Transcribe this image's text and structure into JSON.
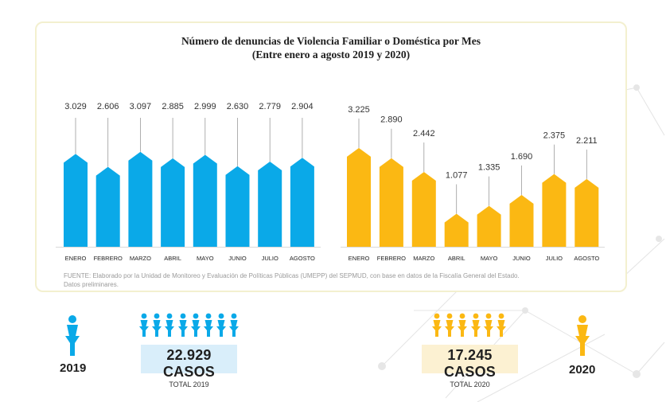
{
  "title": {
    "line1": "Número de denuncias de Violencia Familiar o Doméstica por Mes",
    "line2": "(Entre enero a agosto 2019 y 2020)"
  },
  "colors": {
    "series_2019": "#0aa9e8",
    "series_2020": "#fbb813",
    "leader": "#9b9b9b",
    "box_2019": "#d9eefa",
    "box_2020": "#fcf1d2"
  },
  "chart_data": [
    {
      "type": "bar",
      "categories": [
        "ENERO",
        "FEBRERO",
        "MARZO",
        "ABRIL",
        "MAYO",
        "JUNIO",
        "JULIO",
        "AGOSTO"
      ],
      "series": [
        {
          "values": [
            3029,
            2606,
            3097,
            2885,
            2999,
            2630,
            2779,
            2904
          ]
        }
      ],
      "data_labels": [
        "3.029",
        "2.606",
        "3.097",
        "2.885",
        "2.999",
        "2.630",
        "2.779",
        "2.904"
      ],
      "ylim": [
        0,
        3400
      ],
      "grid": false
    },
    {
      "type": "bar",
      "categories": [
        "ENERO",
        "FEBRERO",
        "MARZO",
        "ABRIL",
        "MAYO",
        "JUNIO",
        "JULIO",
        "AGOSTO"
      ],
      "series": [
        {
          "values": [
            3225,
            2890,
            2442,
            1077,
            1335,
            1690,
            2375,
            2211
          ]
        }
      ],
      "data_labels": [
        "3.225",
        "2.890",
        "2.442",
        "1.077",
        "1.335",
        "1.690",
        "2.375",
        "2.211"
      ],
      "ylim": [
        0,
        3400
      ],
      "grid": false
    }
  ],
  "source": {
    "line1": "FUENTE: Elaborado por la Unidad de Monitoreo y Evaluación de Políticas Públicas (UMEPP) del SEPMUD, con base en datos de la Fiscalía General del Estado.",
    "line2": "Datos preliminares."
  },
  "totals_2019": {
    "year": "2019",
    "cases": "22.929 CASOS",
    "label": "TOTAL 2019",
    "icon_count": 8,
    "icon": "woman-icon"
  },
  "totals_2020": {
    "year": "2020",
    "cases": "17.245 CASOS",
    "label": "TOTAL 2020",
    "icon_count": 6,
    "icon": "woman-icon"
  }
}
